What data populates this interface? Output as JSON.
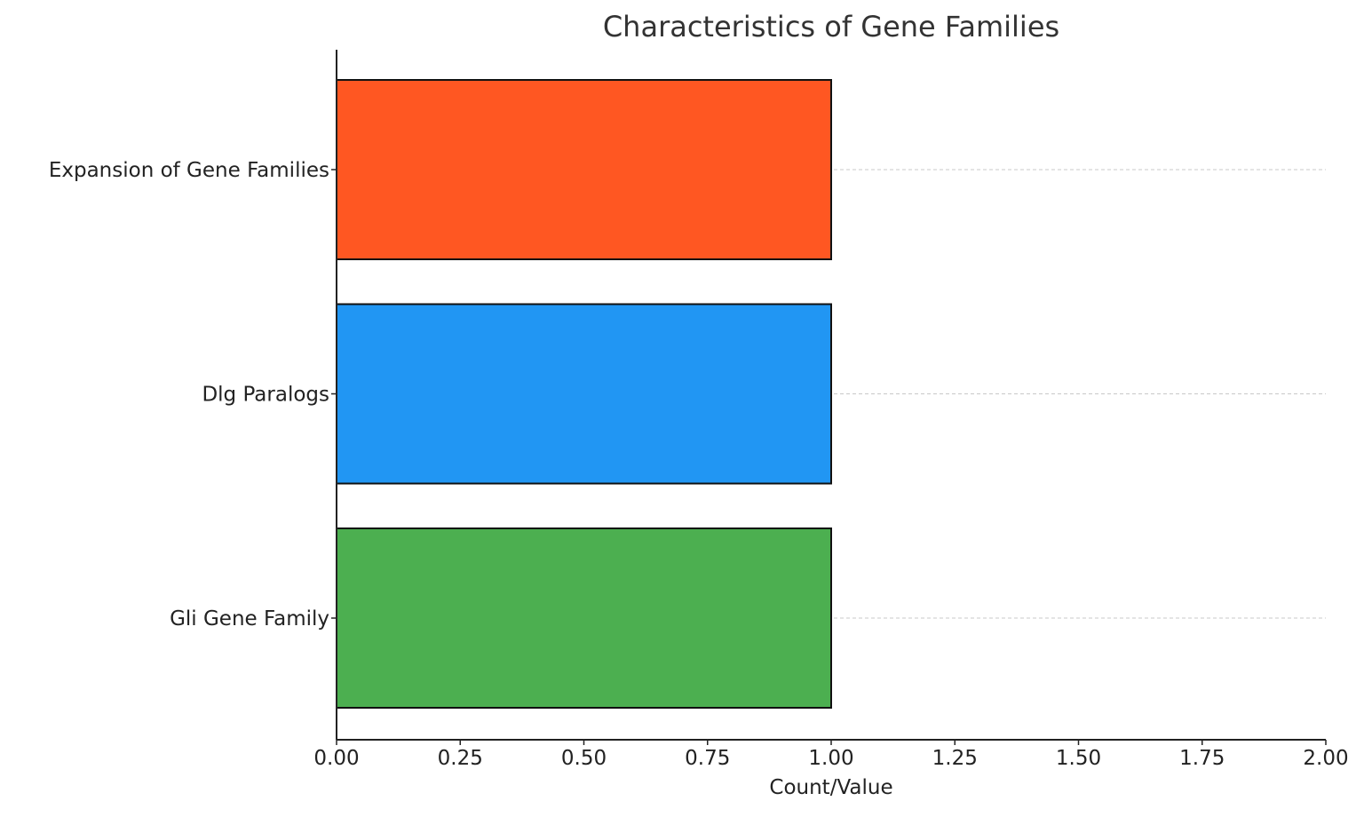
{
  "chart_data": {
    "type": "bar",
    "orientation": "horizontal",
    "title": "Characteristics of Gene Families",
    "xlabel": "Count/Value",
    "ylabel": "",
    "categories": [
      "Gli Gene Family",
      "Dlg Paralogs",
      "Expansion of Gene Families"
    ],
    "values": [
      1,
      1,
      1
    ],
    "colors": [
      "#4CAF50",
      "#2196F3",
      "#FF5722"
    ],
    "xlim": [
      0,
      2
    ],
    "xticks": [
      "0.00",
      "0.25",
      "0.50",
      "0.75",
      "1.00",
      "1.25",
      "1.50",
      "1.75",
      "2.00"
    ],
    "grid": "horizontal dashed at category positions"
  }
}
